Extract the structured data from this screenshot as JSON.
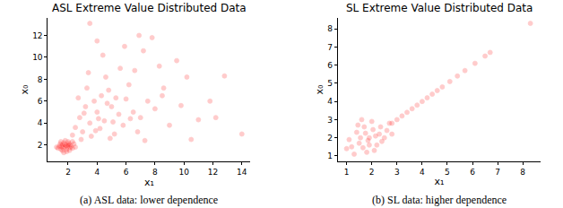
{
  "chart_data": [
    {
      "type": "scatter",
      "title": "ASL Extreme Value Distributed Data",
      "caption": "(a) ASL data: lower dependence",
      "x_label": "x₁",
      "y_label": "x₀",
      "color": "red",
      "marker": "circle",
      "xlim": [
        0.6,
        14.6
      ],
      "ylim": [
        0.5,
        13.6
      ],
      "xticks": [
        2,
        4,
        6,
        8,
        10,
        12,
        14
      ],
      "yticks": [
        2,
        4,
        6,
        8,
        10,
        12
      ],
      "x": [
        1.8,
        1.5,
        2.1,
        1.7,
        2.3,
        1.4,
        1.9,
        2.0,
        1.6,
        2.2,
        1.3,
        2.4,
        1.8,
        1.9,
        1.6,
        2.1,
        1.5,
        2.5,
        1.7,
        2.0,
        1.45,
        2.3,
        1.2,
        1.85,
        2.15,
        1.65,
        2.05,
        1.55,
        1.95,
        1.75,
        3.0,
        3.5,
        4.0,
        4.5,
        5.0,
        4.2,
        3.8,
        5.5,
        6.0,
        4.8,
        3.2,
        5.2,
        6.5,
        4.3,
        2.8,
        5.8,
        4.6,
        3.6,
        7.0,
        6.2,
        2.5,
        4.1,
        5.3,
        3.3,
        7.5,
        6.8,
        5.6,
        4.9,
        8.0,
        2.9,
        3.4,
        6.6,
        9.0,
        7.3,
        4.4,
        5.9,
        8.5,
        9.8,
        10.5,
        3.5,
        7.8,
        12.8,
        14.0,
        10.2,
        11.0,
        9.5,
        7.2,
        8.6,
        2.3,
        3.9,
        4.7,
        5.1,
        3.1,
        6.3,
        2.7,
        11.8,
        12.2,
        8.3,
        6.9,
        4.0
      ],
      "values": [
        1.8,
        1.6,
        2.0,
        2.2,
        1.7,
        1.9,
        1.4,
        2.3,
        1.5,
        1.9,
        1.7,
        2.1,
        2.4,
        1.6,
        2.0,
        1.5,
        2.3,
        1.8,
        1.3,
        2.0,
        2.1,
        2.3,
        1.8,
        1.95,
        1.75,
        1.75,
        2.15,
        1.85,
        1.85,
        2.05,
        3.2,
        4.0,
        5.0,
        4.2,
        5.5,
        3.5,
        6.0,
        4.8,
        6.2,
        7.0,
        5.5,
        3.0,
        5.0,
        6.5,
        4.5,
        3.8,
        8.2,
        2.8,
        4.5,
        7.5,
        3.6,
        4.4,
        6.3,
        7.2,
        6.0,
        3.2,
        9.0,
        2.6,
        5.3,
        2.5,
        8.6,
        8.8,
        3.8,
        2.4,
        10.2,
        11.0,
        6.5,
        5.6,
        2.5,
        13.1,
        11.8,
        8.3,
        3.0,
        8.2,
        4.3,
        9.7,
        10.6,
        7.2,
        2.9,
        3.3,
        5.8,
        4.1,
        4.9,
        4.4,
        6.3,
        6.0,
        4.5,
        9.2,
        12.0,
        11.5
      ]
    },
    {
      "type": "scatter",
      "title": "SL Extreme Value Distributed Data",
      "caption": "(b) SL data: higher dependence",
      "x_label": "x₁",
      "y_label": "x₀",
      "color": "red",
      "marker": "circle",
      "xlim": [
        0.65,
        8.7
      ],
      "ylim": [
        0.7,
        8.6
      ],
      "xticks": [
        1,
        2,
        3,
        4,
        5,
        6,
        7,
        8
      ],
      "yticks": [
        1,
        2,
        3,
        4,
        5,
        6,
        7,
        8
      ],
      "x": [
        1.9,
        1.5,
        2.3,
        1.2,
        2.6,
        1.7,
        2.1,
        1.4,
        2.4,
        1.8,
        1.1,
        2.7,
        1.6,
        2.0,
        2.2,
        1.3,
        1.9,
        2.5,
        1.75,
        2.05,
        1.55,
        2.35,
        1.0,
        1.85,
        2.15,
        1.65,
        2.8,
        1.45,
        2.8,
        3.0,
        3.2,
        3.4,
        3.6,
        3.8,
        4.0,
        4.2,
        4.4,
        4.6,
        4.8,
        5.1,
        5.4,
        5.7,
        6.1,
        6.5,
        6.7,
        8.3
      ],
      "values": [
        2.0,
        1.7,
        2.2,
        1.5,
        2.4,
        2.6,
        1.3,
        2.3,
        1.8,
        1.2,
        1.9,
        2.8,
        3.0,
        2.9,
        1.6,
        1.1,
        1.6,
        2.0,
        2.25,
        2.45,
        2.0,
        2.6,
        1.4,
        1.85,
        2.1,
        1.45,
        2.2,
        2.7,
        2.8,
        3.0,
        3.2,
        3.4,
        3.6,
        3.8,
        4.0,
        4.2,
        4.4,
        4.6,
        4.8,
        5.1,
        5.4,
        5.7,
        6.1,
        6.5,
        6.7,
        8.3
      ]
    }
  ]
}
